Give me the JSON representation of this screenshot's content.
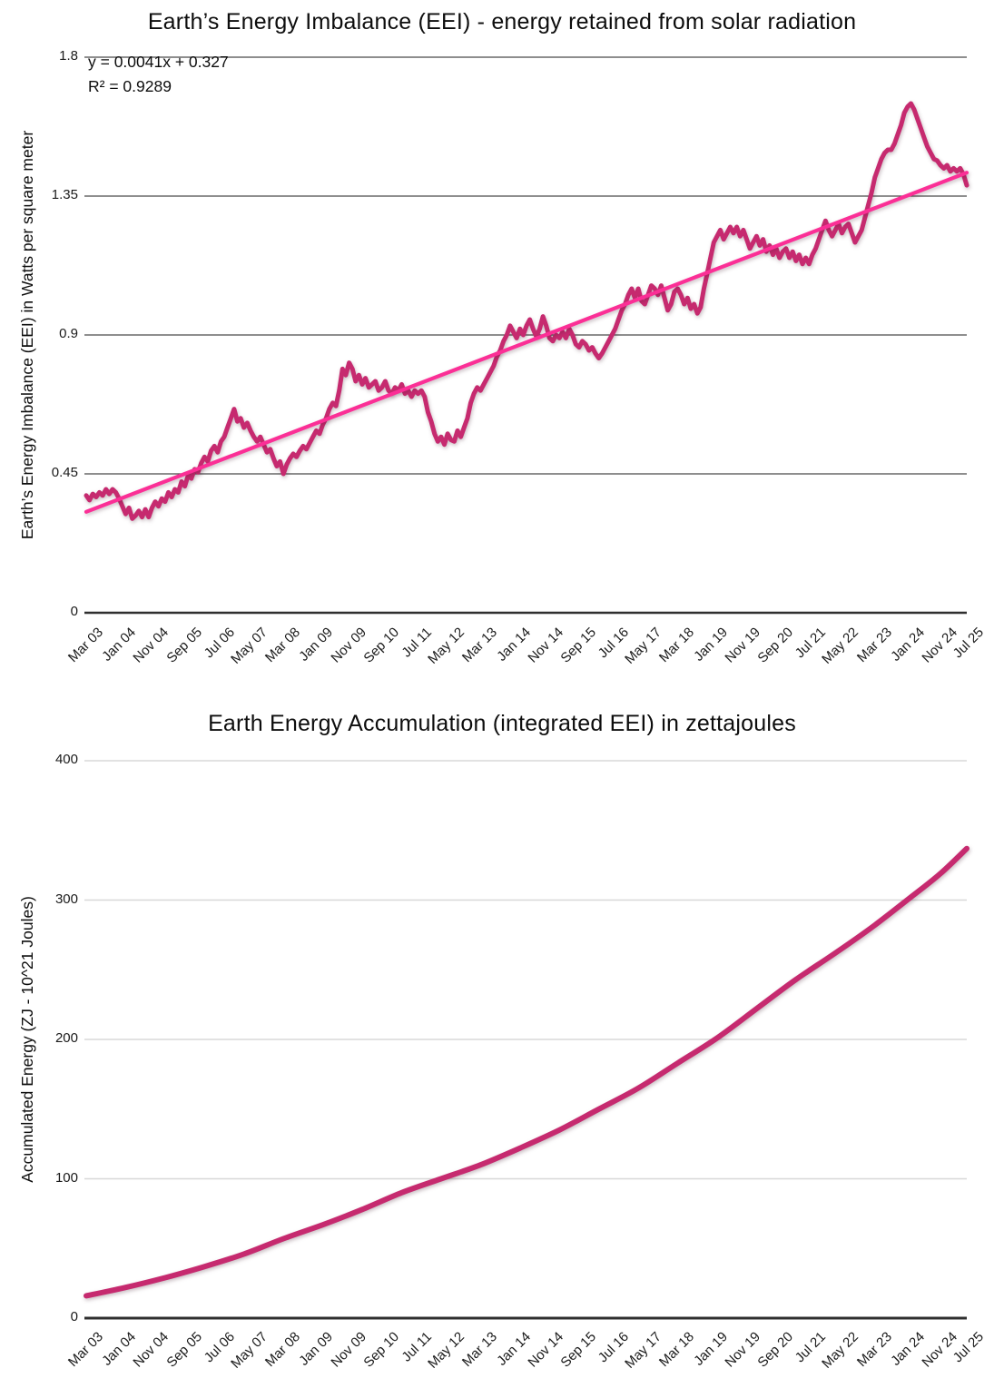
{
  "colors": {
    "series": "#c62a6f",
    "trend": "#fb2f96",
    "grid_dark": "#4a4a4a",
    "grid_light": "#d8d8d8",
    "axis": "#2f2f2f",
    "text": "#0d0d0d"
  },
  "x_labels": [
    "Mar 03",
    "Jan 04",
    "Nov 04",
    "Sep 05",
    "Jul 06",
    "May 07",
    "Mar 08",
    "Jan 09",
    "Nov 09",
    "Sep 10",
    "Jul 11",
    "May 12",
    "Mar 13",
    "Jan 14",
    "Nov 14",
    "Sep 15",
    "Jul 16",
    "May 17",
    "Mar 18",
    "Jan 19",
    "Nov 19",
    "Sep 20",
    "Jul 21",
    "May 22",
    "Mar 23",
    "Jan 24",
    "Nov 24",
    "Jul 25"
  ],
  "x_tick_months": [
    0,
    10,
    20,
    30,
    40,
    50,
    60,
    70,
    80,
    90,
    100,
    110,
    120,
    130,
    140,
    150,
    160,
    170,
    180,
    190,
    200,
    210,
    220,
    230,
    240,
    250,
    260,
    268
  ],
  "charts": [
    {
      "title": "Earth’s Energy Imbalance (EEI) - energy retained from solar radiation",
      "annotation": {
        "equation": "y = 0.0041x + 0.327",
        "r_squared": "R² = 0.9289"
      },
      "y_axis": {
        "label": "Earth’s Energy Imbalance (EEI) in Watts per square meter",
        "tick_labels": [
          "0",
          "0.45",
          "0.9",
          "1.35",
          "1.8"
        ],
        "tick_values": [
          0,
          0.45,
          0.9,
          1.35,
          1.8
        ]
      },
      "chart_data": {
        "type": "line",
        "title": "Earth’s Energy Imbalance (EEI) - energy retained from solar radiation",
        "xlabel": "",
        "ylabel": "Earth’s Energy Imbalance (EEI) in Watts per square meter",
        "x_unit": "months since Mar 2003",
        "x_range": [
          0,
          268
        ],
        "ylim": [
          0,
          1.8
        ],
        "grid": "horizontal",
        "legend": "none",
        "x_tick_labels": [
          "Mar 03",
          "Jan 04",
          "Nov 04",
          "Sep 05",
          "Jul 06",
          "May 07",
          "Mar 08",
          "Jan 09",
          "Nov 09",
          "Sep 10",
          "Jul 11",
          "May 12",
          "Mar 13",
          "Jan 14",
          "Nov 14",
          "Sep 15",
          "Jul 16",
          "May 17",
          "Mar 18",
          "Jan 19",
          "Nov 19",
          "Sep 20",
          "Jul 21",
          "May 22",
          "Mar 23",
          "Jan 24",
          "Nov 24",
          "Jul 25"
        ],
        "series_values_monthly": [
          0.38,
          0.365,
          0.385,
          0.375,
          0.39,
          0.38,
          0.4,
          0.385,
          0.4,
          0.39,
          0.37,
          0.345,
          0.32,
          0.34,
          0.305,
          0.315,
          0.33,
          0.31,
          0.335,
          0.31,
          0.34,
          0.36,
          0.345,
          0.37,
          0.36,
          0.39,
          0.375,
          0.4,
          0.39,
          0.425,
          0.41,
          0.445,
          0.435,
          0.465,
          0.455,
          0.485,
          0.505,
          0.49,
          0.525,
          0.54,
          0.52,
          0.555,
          0.57,
          0.6,
          0.63,
          0.66,
          0.62,
          0.63,
          0.6,
          0.615,
          0.59,
          0.57,
          0.555,
          0.57,
          0.545,
          0.52,
          0.53,
          0.5,
          0.475,
          0.49,
          0.45,
          0.48,
          0.5,
          0.515,
          0.505,
          0.525,
          0.54,
          0.53,
          0.55,
          0.57,
          0.59,
          0.58,
          0.61,
          0.63,
          0.66,
          0.68,
          0.67,
          0.72,
          0.79,
          0.77,
          0.81,
          0.79,
          0.75,
          0.77,
          0.74,
          0.76,
          0.73,
          0.74,
          0.75,
          0.72,
          0.73,
          0.75,
          0.72,
          0.71,
          0.73,
          0.72,
          0.74,
          0.71,
          0.72,
          0.7,
          0.72,
          0.71,
          0.72,
          0.7,
          0.65,
          0.62,
          0.58,
          0.555,
          0.57,
          0.545,
          0.58,
          0.56,
          0.555,
          0.59,
          0.57,
          0.6,
          0.63,
          0.68,
          0.71,
          0.73,
          0.72,
          0.74,
          0.76,
          0.78,
          0.8,
          0.83,
          0.85,
          0.88,
          0.9,
          0.93,
          0.91,
          0.89,
          0.92,
          0.9,
          0.93,
          0.95,
          0.92,
          0.895,
          0.92,
          0.96,
          0.93,
          0.89,
          0.88,
          0.9,
          0.89,
          0.91,
          0.89,
          0.92,
          0.9,
          0.87,
          0.86,
          0.88,
          0.87,
          0.85,
          0.86,
          0.84,
          0.825,
          0.84,
          0.86,
          0.88,
          0.9,
          0.92,
          0.95,
          0.98,
          1.0,
          1.03,
          1.05,
          1.02,
          1.05,
          1.01,
          1.0,
          1.03,
          1.06,
          1.05,
          1.03,
          1.06,
          1.02,
          0.98,
          1.0,
          1.04,
          1.05,
          1.03,
          1.0,
          1.02,
          0.985,
          1.0,
          0.97,
          0.99,
          1.05,
          1.1,
          1.15,
          1.2,
          1.22,
          1.24,
          1.21,
          1.23,
          1.25,
          1.23,
          1.25,
          1.22,
          1.24,
          1.21,
          1.18,
          1.2,
          1.22,
          1.19,
          1.21,
          1.17,
          1.19,
          1.16,
          1.18,
          1.15,
          1.17,
          1.18,
          1.15,
          1.17,
          1.14,
          1.16,
          1.13,
          1.15,
          1.13,
          1.16,
          1.18,
          1.21,
          1.24,
          1.27,
          1.24,
          1.22,
          1.24,
          1.26,
          1.23,
          1.25,
          1.26,
          1.23,
          1.2,
          1.22,
          1.24,
          1.28,
          1.32,
          1.36,
          1.41,
          1.44,
          1.47,
          1.49,
          1.5,
          1.5,
          1.52,
          1.55,
          1.58,
          1.62,
          1.64,
          1.65,
          1.63,
          1.6,
          1.57,
          1.54,
          1.51,
          1.49,
          1.47,
          1.465,
          1.45,
          1.44,
          1.45,
          1.43,
          1.44,
          1.43,
          1.44,
          1.42,
          1.385
        ],
        "trendline": {
          "equation": "y = 0.0041x + 0.327",
          "slope": 0.0041,
          "intercept": 0.327,
          "r_squared": 0.9289,
          "x_start": 0,
          "x_end": 268
        }
      }
    },
    {
      "title": "Earth Energy Accumulation (integrated EEI) in zettajoules",
      "y_axis": {
        "label": "Accumulated Energy (ZJ - 10^21 Joules)",
        "tick_labels": [
          "0",
          "100",
          "200",
          "300",
          "400"
        ],
        "tick_values": [
          0,
          100,
          200,
          300,
          400
        ]
      },
      "chart_data": {
        "type": "line",
        "title": "Earth Energy Accumulation (integrated EEI) in zettajoules",
        "xlabel": "",
        "ylabel": "Accumulated Energy (ZJ - 10^21 Joules)",
        "x_unit": "months since Mar 2003",
        "x_range": [
          0,
          268
        ],
        "ylim": [
          0,
          400
        ],
        "grid": "horizontal",
        "legend": "none",
        "x_tick_labels": [
          "Mar 03",
          "Jan 04",
          "Nov 04",
          "Sep 05",
          "Jul 06",
          "May 07",
          "Mar 08",
          "Jan 09",
          "Nov 09",
          "Sep 10",
          "Jul 11",
          "May 12",
          "Mar 13",
          "Jan 14",
          "Nov 14",
          "Sep 15",
          "Jul 16",
          "May 17",
          "Mar 18",
          "Jan 19",
          "Nov 19",
          "Sep 20",
          "Jul 21",
          "May 22",
          "Mar 23",
          "Jan 24",
          "Nov 24",
          "Jul 25"
        ],
        "series_points": [
          [
            0,
            16
          ],
          [
            12,
            22
          ],
          [
            24,
            29
          ],
          [
            36,
            37
          ],
          [
            48,
            46
          ],
          [
            60,
            57
          ],
          [
            72,
            67
          ],
          [
            84,
            78
          ],
          [
            96,
            90
          ],
          [
            108,
            100
          ],
          [
            120,
            110
          ],
          [
            132,
            122
          ],
          [
            144,
            135
          ],
          [
            156,
            150
          ],
          [
            168,
            165
          ],
          [
            180,
            183
          ],
          [
            192,
            201
          ],
          [
            204,
            222
          ],
          [
            216,
            243
          ],
          [
            228,
            262
          ],
          [
            240,
            282
          ],
          [
            252,
            304
          ],
          [
            260,
            319
          ],
          [
            268,
            337
          ]
        ]
      }
    }
  ]
}
